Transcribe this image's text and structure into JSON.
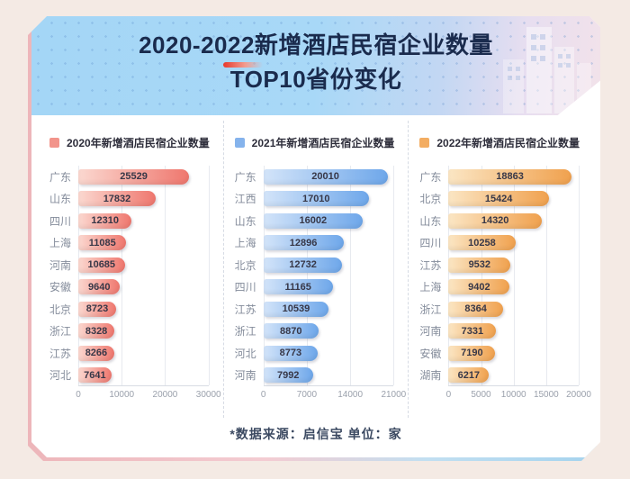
{
  "page": {
    "title_line1": "2020-2022新增酒店民宿企业数量",
    "title_line2": "TOP10省份变化",
    "footer": "*数据来源：启信宝  单位：家"
  },
  "colors": {
    "page_bg": "#f4eae4",
    "card_bg": "#ffffff",
    "header_gradient": [
      "#a4d6f6",
      "#f2e2ea"
    ],
    "title_color": "#1a2b4d",
    "accent_red": "#e8392c"
  },
  "chart_data": [
    {
      "type": "bar",
      "orientation": "horizontal",
      "legend": "2020年新增酒店民宿企业数量",
      "categories": [
        "广东",
        "山东",
        "四川",
        "上海",
        "河南",
        "安徽",
        "北京",
        "浙江",
        "江苏",
        "河北"
      ],
      "values": [
        25529,
        17832,
        12310,
        11085,
        10685,
        9640,
        8723,
        8328,
        8266,
        7641
      ],
      "xlim": [
        0,
        30000
      ],
      "xticks": [
        0,
        10000,
        20000,
        30000
      ],
      "grid": true,
      "colors": {
        "bar_from": "#fbd8d0",
        "bar_to": "#ef776e",
        "swatch": "#f2948b"
      }
    },
    {
      "type": "bar",
      "orientation": "horizontal",
      "legend": "2021年新增酒店民宿企业数量",
      "categories": [
        "广东",
        "江西",
        "山东",
        "上海",
        "北京",
        "四川",
        "江苏",
        "浙江",
        "河北",
        "河南"
      ],
      "values": [
        20010,
        17010,
        16002,
        12896,
        12732,
        11165,
        10539,
        8870,
        8773,
        7992
      ],
      "xlim": [
        0,
        21000
      ],
      "xticks": [
        0,
        7000,
        14000,
        21000
      ],
      "grid": true,
      "colors": {
        "bar_from": "#d3e4f9",
        "bar_to": "#6ea7ea",
        "swatch": "#85b3ec"
      }
    },
    {
      "type": "bar",
      "orientation": "horizontal",
      "legend": "2022年新增酒店民宿企业数量",
      "categories": [
        "广东",
        "北京",
        "山东",
        "四川",
        "江苏",
        "上海",
        "浙江",
        "河南",
        "安徽",
        "湖南"
      ],
      "values": [
        18863,
        15424,
        14320,
        10258,
        9532,
        9402,
        8364,
        7331,
        7190,
        6217
      ],
      "xlim": [
        0,
        20000
      ],
      "xticks": [
        0,
        5000,
        10000,
        15000,
        20000
      ],
      "grid": true,
      "colors": {
        "bar_from": "#fbe6c4",
        "bar_to": "#f0a14e",
        "swatch": "#f3ad62"
      }
    }
  ]
}
